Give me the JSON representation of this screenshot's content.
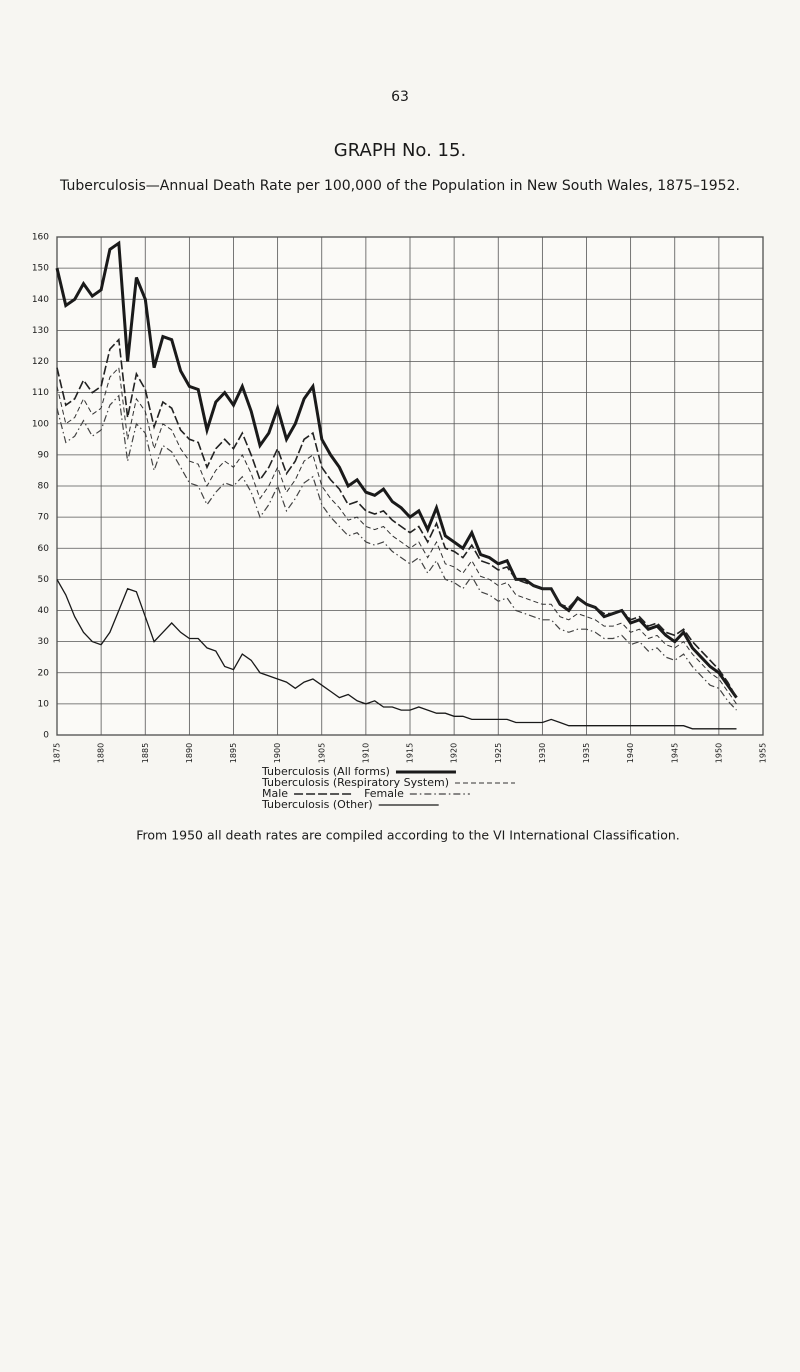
{
  "page_number": "63",
  "footnote": "From 1950 all death rates are compiled according to the VI International Classification.",
  "chart_data": {
    "type": "line",
    "title": "GRAPH No. 15.",
    "subtitle": "Tuberculosis—Annual Death Rate per 100,000 of the Population in New South Wales, 1875–1952.",
    "x": [
      1875,
      1876,
      1877,
      1878,
      1879,
      1880,
      1881,
      1882,
      1883,
      1884,
      1885,
      1886,
      1887,
      1888,
      1889,
      1890,
      1891,
      1892,
      1893,
      1894,
      1895,
      1896,
      1897,
      1898,
      1899,
      1900,
      1901,
      1902,
      1903,
      1904,
      1905,
      1906,
      1907,
      1908,
      1909,
      1910,
      1911,
      1912,
      1913,
      1914,
      1915,
      1916,
      1917,
      1918,
      1919,
      1920,
      1921,
      1922,
      1923,
      1924,
      1925,
      1926,
      1927,
      1928,
      1929,
      1930,
      1931,
      1932,
      1933,
      1934,
      1935,
      1936,
      1937,
      1938,
      1939,
      1940,
      1941,
      1942,
      1943,
      1944,
      1945,
      1946,
      1947,
      1948,
      1949,
      1950,
      1951,
      1952
    ],
    "series": [
      {
        "name": "Tuberculosis (All forms)",
        "color": "#1a1a1a",
        "style": "thick",
        "values": [
          150,
          138,
          140,
          145,
          141,
          143,
          156,
          158,
          120,
          147,
          140,
          118,
          128,
          127,
          117,
          112,
          111,
          98,
          107,
          110,
          106,
          112,
          104,
          93,
          97,
          105,
          95,
          100,
          108,
          112,
          95,
          90,
          86,
          80,
          82,
          78,
          77,
          79,
          75,
          73,
          70,
          72,
          66,
          73,
          64,
          62,
          60,
          65,
          58,
          57,
          55,
          56,
          50,
          50,
          48,
          47,
          47,
          42,
          40,
          44,
          42,
          41,
          38,
          39,
          40,
          36,
          37,
          34,
          35,
          32,
          30,
          33,
          28,
          25,
          22,
          20,
          16,
          12
        ]
      },
      {
        "name": "Tuberculosis (Respiratory System)",
        "color": "#333333",
        "style": "dashed",
        "values": [
          112,
          100,
          102,
          108,
          103,
          105,
          115,
          118,
          95,
          108,
          104,
          92,
          100,
          98,
          92,
          88,
          87,
          80,
          85,
          88,
          86,
          90,
          84,
          76,
          80,
          86,
          78,
          82,
          88,
          90,
          80,
          76,
          73,
          69,
          70,
          67,
          66,
          67,
          64,
          62,
          60,
          62,
          57,
          62,
          55,
          54,
          52,
          56,
          51,
          50,
          48,
          49,
          45,
          44,
          43,
          42,
          42,
          38,
          37,
          39,
          38,
          37,
          35,
          35,
          36,
          33,
          34,
          31,
          32,
          29,
          28,
          30,
          26,
          23,
          20,
          18,
          14,
          10
        ]
      },
      {
        "name": "Male",
        "color": "#222222",
        "style": "cross",
        "values": [
          118,
          106,
          108,
          114,
          110,
          112,
          124,
          127,
          102,
          116,
          111,
          99,
          107,
          105,
          98,
          95,
          94,
          86,
          92,
          95,
          92,
          97,
          90,
          82,
          86,
          92,
          84,
          88,
          95,
          97,
          86,
          82,
          79,
          74,
          75,
          72,
          71,
          72,
          69,
          67,
          65,
          67,
          62,
          68,
          60,
          59,
          57,
          61,
          56,
          55,
          53,
          54,
          50,
          49,
          48,
          47,
          47,
          42,
          41,
          44,
          42,
          41,
          39,
          39,
          40,
          37,
          38,
          35,
          36,
          33,
          32,
          34,
          30,
          27,
          24,
          21,
          17,
          12
        ]
      },
      {
        "name": "Female",
        "color": "#444444",
        "style": "dashdot",
        "values": [
          105,
          94,
          96,
          101,
          96,
          98,
          106,
          109,
          88,
          100,
          97,
          85,
          93,
          91,
          86,
          81,
          80,
          74,
          78,
          81,
          80,
          83,
          78,
          70,
          74,
          80,
          72,
          76,
          81,
          83,
          74,
          70,
          67,
          64,
          65,
          62,
          61,
          62,
          59,
          57,
          55,
          57,
          52,
          56,
          50,
          49,
          47,
          51,
          46,
          45,
          43,
          44,
          40,
          39,
          38,
          37,
          37,
          34,
          33,
          34,
          34,
          33,
          31,
          31,
          32,
          29,
          30,
          27,
          28,
          25,
          24,
          26,
          22,
          19,
          16,
          15,
          11,
          8
        ]
      },
      {
        "name": "Tuberculosis (Other)",
        "color": "#1a1a1a",
        "style": "thin",
        "values": [
          50,
          45,
          38,
          33,
          30,
          29,
          33,
          40,
          47,
          46,
          38,
          30,
          33,
          36,
          33,
          31,
          31,
          28,
          27,
          22,
          21,
          26,
          24,
          20,
          19,
          18,
          17,
          15,
          17,
          18,
          16,
          14,
          12,
          13,
          11,
          10,
          11,
          9,
          9,
          8,
          8,
          9,
          8,
          7,
          7,
          6,
          6,
          5,
          5,
          5,
          5,
          5,
          4,
          4,
          4,
          4,
          5,
          4,
          3,
          3,
          3,
          3,
          3,
          3,
          3,
          3,
          3,
          3,
          3,
          3,
          3,
          3,
          2,
          2,
          2,
          2,
          2,
          2
        ]
      }
    ],
    "xlim": [
      1875,
      1955
    ],
    "xticks": [
      1875,
      1880,
      1885,
      1890,
      1895,
      1900,
      1905,
      1910,
      1915,
      1920,
      1925,
      1930,
      1935,
      1940,
      1945,
      1950,
      1955
    ],
    "ylim": [
      0,
      160
    ],
    "yticks": [
      0,
      10,
      20,
      30,
      40,
      50,
      60,
      70,
      80,
      90,
      100,
      110,
      120,
      130,
      140,
      150,
      160
    ],
    "grid": true
  }
}
